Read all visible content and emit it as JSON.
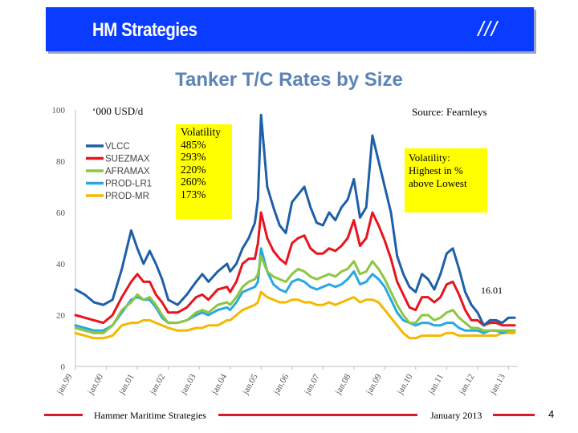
{
  "header": {
    "title": "HM Strategies",
    "mark": "///"
  },
  "unit_note": "‘000 USD/d",
  "source_note": "Source: Fearnleys",
  "volatility_box": {
    "heading": "Volatility",
    "values": [
      "485%",
      "293%",
      "220%",
      "260%",
      "173%"
    ]
  },
  "volatility_note": {
    "line1": "Volatility:",
    "line2": "Highest in %",
    "line3": "above Lowest"
  },
  "latest_label": "16.01",
  "footer": {
    "left": "Hammer Maritime Strategies",
    "center": "January 2013",
    "page": "4"
  },
  "colors": {
    "header_bar": "#0a3cff",
    "title": "#5b83b5",
    "highlight": "#ffff00",
    "footer_line": "#d81b2a"
  },
  "chart_data": {
    "type": "line",
    "title": "Tanker T/C Rates by Size",
    "xlabel": "",
    "ylabel": "",
    "ylim": [
      0,
      100
    ],
    "yticks": [
      0,
      20,
      40,
      60,
      80,
      100
    ],
    "xticks": [
      "jan.99",
      "jan.00",
      "jan.01",
      "jan.02",
      "jan.03",
      "jan.04",
      "jan.05",
      "jan.06",
      "jan.07",
      "jan.08",
      "jan.09",
      "jan.10",
      "jan.11",
      "jan.12",
      "jan.13"
    ],
    "x_range": [
      1999.0,
      2013.3
    ],
    "grid": false,
    "legend": "top-left",
    "series": [
      {
        "name": "VLCC",
        "color": "#1f5fa8",
        "x": [
          1999.0,
          1999.3,
          1999.6,
          1999.9,
          2000.2,
          2000.5,
          2000.8,
          2001.0,
          2001.2,
          2001.4,
          2001.6,
          2001.8,
          2002.0,
          2002.3,
          2002.6,
          2002.9,
          2003.1,
          2003.3,
          2003.6,
          2003.9,
          2004.0,
          2004.2,
          2004.4,
          2004.6,
          2004.8,
          2004.9,
          2005.0,
          2005.2,
          2005.4,
          2005.6,
          2005.8,
          2006.0,
          2006.2,
          2006.4,
          2006.6,
          2006.8,
          2007.0,
          2007.2,
          2007.4,
          2007.6,
          2007.8,
          2008.0,
          2008.2,
          2008.4,
          2008.6,
          2008.8,
          2009.0,
          2009.2,
          2009.4,
          2009.6,
          2009.8,
          2010.0,
          2010.2,
          2010.4,
          2010.6,
          2010.8,
          2011.0,
          2011.2,
          2011.4,
          2011.6,
          2011.8,
          2012.0,
          2012.2,
          2012.4,
          2012.6,
          2012.8,
          2013.0,
          2013.2
        ],
        "y": [
          30,
          28,
          25,
          24,
          26,
          38,
          53,
          46,
          40,
          45,
          40,
          34,
          26,
          24,
          28,
          33,
          36,
          33,
          37,
          40,
          37,
          40,
          46,
          50,
          56,
          65,
          98,
          70,
          62,
          55,
          52,
          64,
          67,
          70,
          62,
          56,
          55,
          60,
          57,
          62,
          65,
          73,
          58,
          62,
          90,
          80,
          70,
          60,
          43,
          36,
          31,
          29,
          36,
          34,
          30,
          36,
          44,
          46,
          38,
          29,
          24,
          21,
          16,
          18,
          18,
          17,
          19,
          19
        ]
      },
      {
        "name": "SUEZMAX",
        "color": "#e8141e",
        "x": [
          1999.0,
          1999.3,
          1999.6,
          1999.9,
          2000.2,
          2000.5,
          2000.8,
          2001.0,
          2001.2,
          2001.4,
          2001.6,
          2001.8,
          2002.0,
          2002.3,
          2002.6,
          2002.9,
          2003.1,
          2003.3,
          2003.6,
          2003.9,
          2004.0,
          2004.2,
          2004.4,
          2004.6,
          2004.8,
          2004.9,
          2005.0,
          2005.2,
          2005.4,
          2005.6,
          2005.8,
          2006.0,
          2006.2,
          2006.4,
          2006.6,
          2006.8,
          2007.0,
          2007.2,
          2007.4,
          2007.6,
          2007.8,
          2008.0,
          2008.2,
          2008.4,
          2008.6,
          2008.8,
          2009.0,
          2009.2,
          2009.4,
          2009.6,
          2009.8,
          2010.0,
          2010.2,
          2010.4,
          2010.6,
          2010.8,
          2011.0,
          2011.2,
          2011.4,
          2011.6,
          2011.8,
          2012.0,
          2012.2,
          2012.4,
          2012.6,
          2012.8,
          2013.0,
          2013.2
        ],
        "y": [
          20,
          19,
          18,
          17,
          20,
          27,
          33,
          36,
          33,
          33,
          28,
          25,
          21,
          21,
          23,
          27,
          28,
          26,
          30,
          31,
          29,
          33,
          40,
          42,
          42,
          48,
          60,
          50,
          45,
          42,
          40,
          48,
          50,
          51,
          46,
          44,
          44,
          46,
          45,
          47,
          50,
          57,
          47,
          50,
          60,
          55,
          49,
          42,
          33,
          28,
          23,
          22,
          27,
          27,
          25,
          27,
          32,
          33,
          28,
          22,
          18,
          18,
          16,
          17,
          17,
          16,
          16,
          16
        ]
      },
      {
        "name": "AFRAMAX",
        "color": "#8dc63f",
        "x": [
          1999.0,
          1999.3,
          1999.6,
          1999.9,
          2000.2,
          2000.5,
          2000.8,
          2001.0,
          2001.2,
          2001.4,
          2001.6,
          2001.8,
          2002.0,
          2002.3,
          2002.6,
          2002.9,
          2003.1,
          2003.3,
          2003.6,
          2003.9,
          2004.0,
          2004.2,
          2004.4,
          2004.6,
          2004.8,
          2004.9,
          2005.0,
          2005.2,
          2005.4,
          2005.6,
          2005.8,
          2006.0,
          2006.2,
          2006.4,
          2006.6,
          2006.8,
          2007.0,
          2007.2,
          2007.4,
          2007.6,
          2007.8,
          2008.0,
          2008.2,
          2008.4,
          2008.6,
          2008.8,
          2009.0,
          2009.2,
          2009.4,
          2009.6,
          2009.8,
          2010.0,
          2010.2,
          2010.4,
          2010.6,
          2010.8,
          2011.0,
          2011.2,
          2011.4,
          2011.6,
          2011.8,
          2012.0,
          2012.2,
          2012.4,
          2012.6,
          2012.8,
          2013.0,
          2013.2
        ],
        "y": [
          15,
          14,
          13,
          13,
          16,
          22,
          25,
          28,
          26,
          27,
          24,
          20,
          17,
          17,
          18,
          21,
          22,
          21,
          24,
          25,
          24,
          27,
          31,
          33,
          34,
          36,
          43,
          37,
          35,
          34,
          33,
          36,
          38,
          37,
          35,
          34,
          35,
          36,
          35,
          37,
          38,
          41,
          36,
          37,
          41,
          38,
          34,
          29,
          24,
          20,
          17,
          17,
          20,
          20,
          18,
          19,
          21,
          22,
          19,
          17,
          15,
          15,
          14,
          14,
          14,
          14,
          14,
          14
        ]
      },
      {
        "name": "PROD-LR1",
        "color": "#29a8e0",
        "x": [
          1999.0,
          1999.3,
          1999.6,
          1999.9,
          2000.2,
          2000.5,
          2000.8,
          2001.0,
          2001.2,
          2001.4,
          2001.6,
          2001.8,
          2002.0,
          2002.3,
          2002.6,
          2002.9,
          2003.1,
          2003.3,
          2003.6,
          2003.9,
          2004.0,
          2004.2,
          2004.4,
          2004.6,
          2004.8,
          2004.9,
          2005.0,
          2005.2,
          2005.4,
          2005.6,
          2005.8,
          2006.0,
          2006.2,
          2006.4,
          2006.6,
          2006.8,
          2007.0,
          2007.2,
          2007.4,
          2007.6,
          2007.8,
          2008.0,
          2008.2,
          2008.4,
          2008.6,
          2008.8,
          2009.0,
          2009.2,
          2009.4,
          2009.6,
          2009.8,
          2010.0,
          2010.2,
          2010.4,
          2010.6,
          2010.8,
          2011.0,
          2011.2,
          2011.4,
          2011.6,
          2011.8,
          2012.0,
          2012.2,
          2012.4,
          2012.6,
          2012.8,
          2013.0,
          2013.2
        ],
        "y": [
          16,
          15,
          14,
          14,
          16,
          21,
          26,
          27,
          26,
          26,
          23,
          19,
          17,
          17,
          18,
          20,
          21,
          20,
          22,
          23,
          22,
          25,
          29,
          30,
          31,
          33,
          46,
          37,
          32,
          30,
          29,
          33,
          34,
          33,
          31,
          30,
          31,
          32,
          31,
          32,
          34,
          37,
          32,
          33,
          36,
          34,
          31,
          26,
          21,
          18,
          17,
          16,
          17,
          17,
          16,
          16,
          17,
          17,
          15,
          14,
          14,
          14,
          13,
          14,
          14,
          13,
          14,
          14
        ]
      },
      {
        "name": "PROD-MR",
        "color": "#f5b800",
        "x": [
          1999.0,
          1999.3,
          1999.6,
          1999.9,
          2000.2,
          2000.5,
          2000.8,
          2001.0,
          2001.2,
          2001.4,
          2001.6,
          2001.8,
          2002.0,
          2002.3,
          2002.6,
          2002.9,
          2003.1,
          2003.3,
          2003.6,
          2003.9,
          2004.0,
          2004.2,
          2004.4,
          2004.6,
          2004.8,
          2004.9,
          2005.0,
          2005.2,
          2005.4,
          2005.6,
          2005.8,
          2006.0,
          2006.2,
          2006.4,
          2006.6,
          2006.8,
          2007.0,
          2007.2,
          2007.4,
          2007.6,
          2007.8,
          2008.0,
          2008.2,
          2008.4,
          2008.6,
          2008.8,
          2009.0,
          2009.2,
          2009.4,
          2009.6,
          2009.8,
          2010.0,
          2010.2,
          2010.4,
          2010.6,
          2010.8,
          2011.0,
          2011.2,
          2011.4,
          2011.6,
          2011.8,
          2012.0,
          2012.2,
          2012.4,
          2012.6,
          2012.8,
          2013.0,
          2013.2
        ],
        "y": [
          13,
          12,
          11,
          11,
          12,
          16,
          17,
          17,
          18,
          18,
          17,
          16,
          15,
          14,
          14,
          15,
          15,
          16,
          16,
          18,
          18,
          20,
          22,
          23,
          24,
          25,
          29,
          27,
          26,
          25,
          25,
          26,
          26,
          25,
          25,
          24,
          24,
          25,
          24,
          25,
          26,
          27,
          25,
          26,
          26,
          25,
          22,
          19,
          16,
          13,
          11,
          11,
          12,
          12,
          12,
          12,
          13,
          13,
          12,
          12,
          12,
          12,
          12,
          12,
          12,
          13,
          13,
          13
        ]
      }
    ]
  }
}
